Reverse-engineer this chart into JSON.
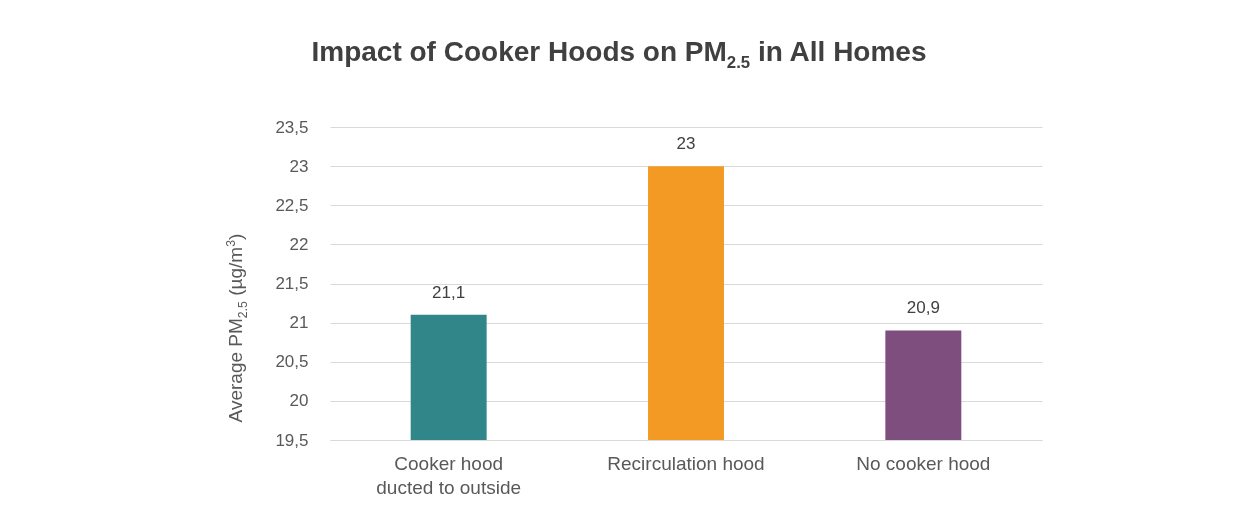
{
  "chart_data": {
    "type": "bar",
    "title": "Impact of Cooker Hoods on PM$_{2.5}$ in All Homes",
    "ylabel": "Average PM$_{2.5}$ (µg/m$^{3}$)",
    "categories": [
      "Cooker hood ducted to outside",
      "Recirculation hood",
      "No cooker hood"
    ],
    "values": [
      21.1,
      23,
      20.9
    ],
    "value_labels": [
      "21,1",
      "23",
      "20,9"
    ],
    "colors": [
      "#31868a",
      "#f39a24",
      "#7e4e7f"
    ],
    "ylim": [
      19.5,
      23.5
    ],
    "yticks": [
      {
        "value": 19.5,
        "label": "19,5"
      },
      20,
      {
        "value": 20.5,
        "label": "20,5"
      },
      21,
      {
        "value": 21.5,
        "label": "21,5"
      },
      22,
      {
        "value": 22.5,
        "label": "22,5"
      },
      23,
      {
        "value": 23.5,
        "label": "23,5"
      }
    ],
    "grid": true
  }
}
